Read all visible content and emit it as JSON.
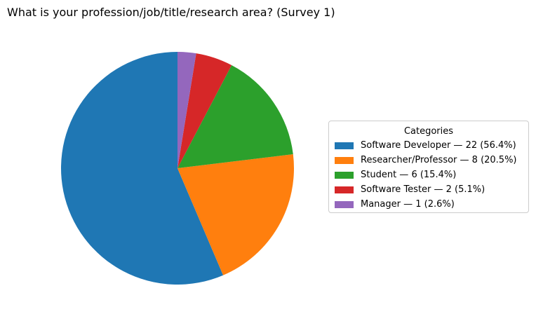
{
  "chart_data": {
    "type": "pie",
    "title": "What is your profession/job/title/research area? (Survey 1)",
    "legend_title": "Categories",
    "legend_position": "right",
    "start_angle_deg": 90,
    "direction": "counterclockwise",
    "slices": [
      {
        "label": "Software Developer — 22 (56.4%)",
        "category": "Software Developer",
        "value": 22,
        "percent": 56.4,
        "color": "#1f77b4"
      },
      {
        "label": "Researcher/Professor — 8 (20.5%)",
        "category": "Researcher/Professor",
        "value": 8,
        "percent": 20.5,
        "color": "#ff7f0e"
      },
      {
        "label": "Student — 6 (15.4%)",
        "category": "Student",
        "value": 6,
        "percent": 15.4,
        "color": "#2ca02c"
      },
      {
        "label": "Software Tester — 2 (5.1%)",
        "category": "Software Tester",
        "value": 2,
        "percent": 5.1,
        "color": "#d62728"
      },
      {
        "label": "Manager — 1 (2.6%)",
        "category": "Manager",
        "value": 1,
        "percent": 2.6,
        "color": "#9467bd"
      }
    ]
  }
}
